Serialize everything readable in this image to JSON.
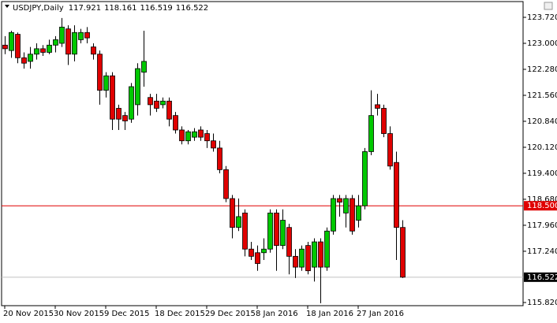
{
  "chart_data": {
    "type": "candlestick",
    "title": "USDJPY,Daily",
    "header_values": [
      117.921,
      118.161,
      116.519,
      116.522
    ],
    "categories": [
      "20 Nov 2015",
      null,
      null,
      null,
      null,
      null,
      null,
      null,
      "30 Nov 2015",
      null,
      null,
      null,
      null,
      null,
      null,
      null,
      "9 Dec 2015",
      null,
      null,
      null,
      null,
      null,
      null,
      null,
      "18 Dec 2015",
      null,
      null,
      null,
      null,
      null,
      null,
      null,
      "29 Dec 2015",
      null,
      null,
      null,
      null,
      null,
      null,
      null,
      "8 Jan 2016",
      null,
      null,
      null,
      null,
      null,
      null,
      null,
      "18 Jan 2016",
      null,
      null,
      null,
      null,
      null,
      null,
      null,
      "27 Jan 2016",
      null,
      null,
      null,
      null,
      null,
      null,
      null
    ],
    "open": [
      122.95,
      122.8,
      123.25,
      122.6,
      122.5,
      122.7,
      122.85,
      122.75,
      122.95,
      123.0,
      123.4,
      122.7,
      123.1,
      123.3,
      122.9,
      122.7,
      121.7,
      122.1,
      121.2,
      121.0,
      120.9,
      121.3,
      122.2,
      121.5,
      121.4,
      121.3,
      121.4,
      121.0,
      120.6,
      120.3,
      120.4,
      120.6,
      120.5,
      120.3,
      120.1,
      119.5,
      118.7,
      117.9,
      118.3,
      117.3,
      117.2,
      117.2,
      117.3,
      118.3,
      117.4,
      117.9,
      117.1,
      116.8,
      117.4,
      116.8,
      117.5,
      116.8,
      117.8,
      118.7,
      118.3,
      118.7,
      118.1,
      118.5,
      120.0,
      121.3,
      121.2,
      120.5,
      119.7,
      117.9
    ],
    "high": [
      123.2,
      123.35,
      123.3,
      122.75,
      122.9,
      123.0,
      122.95,
      123.1,
      123.2,
      123.7,
      123.5,
      123.5,
      123.4,
      123.45,
      123.0,
      122.8,
      122.2,
      122.2,
      121.3,
      121.1,
      121.9,
      122.45,
      123.35,
      121.6,
      121.6,
      121.5,
      121.5,
      121.1,
      120.7,
      120.6,
      120.65,
      120.7,
      120.6,
      120.5,
      120.3,
      119.6,
      118.8,
      118.7,
      118.4,
      117.5,
      117.4,
      117.6,
      118.4,
      118.4,
      118.4,
      118.0,
      117.3,
      117.4,
      117.5,
      117.6,
      117.6,
      117.9,
      118.8,
      118.8,
      118.8,
      118.8,
      118.8,
      120.1,
      121.7,
      121.6,
      121.3,
      120.7,
      120.0,
      118.1
    ],
    "low": [
      122.7,
      122.6,
      122.45,
      122.3,
      122.3,
      122.55,
      122.65,
      122.7,
      122.75,
      122.9,
      122.4,
      122.5,
      123.0,
      123.0,
      122.55,
      121.3,
      121.5,
      120.6,
      120.6,
      120.6,
      120.8,
      121.0,
      121.8,
      121.0,
      121.1,
      121.2,
      120.7,
      120.5,
      120.2,
      120.2,
      120.3,
      120.3,
      120.1,
      120.0,
      119.4,
      118.6,
      117.6,
      117.8,
      117.1,
      117.0,
      116.7,
      117.0,
      117.2,
      116.7,
      117.3,
      116.6,
      116.5,
      116.7,
      116.6,
      116.4,
      115.8,
      116.7,
      117.7,
      118.2,
      117.9,
      117.7,
      117.9,
      118.4,
      119.9,
      121.0,
      120.4,
      119.5,
      117.0,
      116.5
    ],
    "close": [
      122.85,
      123.3,
      122.6,
      122.45,
      122.7,
      122.85,
      122.75,
      122.95,
      123.1,
      123.45,
      122.7,
      123.3,
      123.3,
      123.15,
      122.7,
      121.7,
      122.1,
      120.9,
      120.9,
      120.85,
      121.8,
      122.3,
      122.5,
      121.3,
      121.2,
      121.4,
      120.9,
      120.6,
      120.3,
      120.55,
      120.55,
      120.4,
      120.3,
      120.1,
      119.5,
      118.7,
      117.9,
      118.2,
      117.3,
      117.1,
      116.9,
      117.3,
      118.3,
      117.4,
      118.1,
      117.1,
      116.8,
      117.3,
      116.7,
      117.5,
      116.8,
      117.8,
      118.7,
      118.6,
      118.7,
      117.8,
      118.5,
      120.0,
      121.0,
      121.2,
      120.5,
      119.6,
      117.9,
      116.522
    ],
    "up_color": "#00c800",
    "down_color": "#e00000",
    "ylim": [
      115.733,
      124.113
    ],
    "yticks": [
      {
        "value": 123.72,
        "label": "123.720"
      },
      {
        "value": 123.0,
        "label": "123.000"
      },
      {
        "value": 122.28,
        "label": "122.280"
      },
      {
        "value": 121.56,
        "label": "121.560"
      },
      {
        "value": 120.84,
        "label": "120.840"
      },
      {
        "value": 120.12,
        "label": "120.120"
      },
      {
        "value": 119.4,
        "label": "119.400"
      },
      {
        "value": 118.68,
        "label": "118.680"
      },
      {
        "value": 117.96,
        "label": "117.960"
      },
      {
        "value": 117.24,
        "label": "117.240"
      },
      {
        "value": 115.82,
        "label": "115.820"
      }
    ],
    "price_lines": [
      {
        "value": 118.5,
        "label": "118.500",
        "color": "#e00000"
      },
      {
        "value": 116.522,
        "label": "116.522",
        "color": "#c0c0c0"
      }
    ],
    "grid": false
  }
}
